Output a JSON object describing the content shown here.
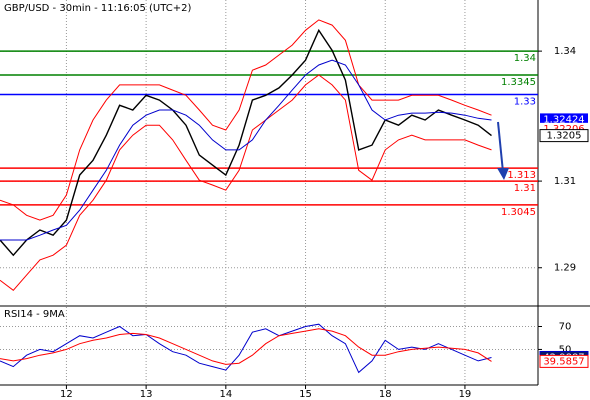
{
  "chart_data": [
    {
      "type": "line",
      "title": "GBP/USD - 30min - 11:16:05 (UTC+2)",
      "x": [
        0,
        4,
        8,
        12,
        16,
        20,
        24,
        28,
        32,
        36,
        40,
        44,
        48,
        52,
        56,
        60,
        64,
        68,
        72,
        76,
        80,
        84,
        88,
        92,
        96,
        100,
        104,
        108,
        112,
        116,
        120,
        124,
        128,
        132,
        136,
        140,
        144,
        148
      ],
      "xlim": [
        0,
        162
      ],
      "ylim": [
        1.2814,
        1.3518
      ],
      "yticks": [
        1.34,
        1.31,
        1.29
      ],
      "grid": true,
      "series": [
        {
          "color": "#000000",
          "values": [
            1.2964,
            1.2929,
            1.2964,
            1.2987,
            1.2975,
            1.301,
            1.3114,
            1.3148,
            1.3206,
            1.3275,
            1.3264,
            1.3298,
            1.3287,
            1.3264,
            1.3229,
            1.316,
            1.3137,
            1.3114,
            1.3183,
            1.3287,
            1.3298,
            1.3315,
            1.3345,
            1.3379,
            1.3448,
            1.3402,
            1.3333,
            1.3172,
            1.3183,
            1.3241,
            1.3229,
            1.3252,
            1.3241,
            1.3264,
            1.3252,
            1.3241,
            1.3229,
            1.3205
          ]
        },
        {
          "color": "#ff0000",
          "values": [
            1.3056,
            1.3045,
            1.3021,
            1.301,
            1.3021,
            1.3068,
            1.3172,
            1.3241,
            1.3287,
            1.3322,
            1.3322,
            1.3322,
            1.3322,
            1.331,
            1.3298,
            1.3264,
            1.3229,
            1.3218,
            1.3264,
            1.3356,
            1.3368,
            1.3391,
            1.3414,
            1.3448,
            1.3472,
            1.346,
            1.3425,
            1.3322,
            1.3287,
            1.3287,
            1.3287,
            1.3298,
            1.3298,
            1.3298,
            1.3287,
            1.3275,
            1.3264,
            1.3252
          ]
        },
        {
          "color": "#ff0000",
          "values": [
            1.2871,
            1.2848,
            1.2883,
            1.2918,
            1.2929,
            1.2952,
            1.3021,
            1.3056,
            1.3102,
            1.3172,
            1.3206,
            1.3229,
            1.3229,
            1.3195,
            1.3148,
            1.3102,
            1.3091,
            1.3079,
            1.3125,
            1.3218,
            1.3241,
            1.3264,
            1.3287,
            1.3322,
            1.3345,
            1.3322,
            1.3287,
            1.3125,
            1.3102,
            1.3172,
            1.3195,
            1.3206,
            1.3195,
            1.3195,
            1.3195,
            1.3195,
            1.3183,
            1.3172
          ]
        },
        {
          "color": "#0000cc",
          "values": [
            1.2964,
            1.2964,
            1.2964,
            1.2975,
            1.2987,
            1.2998,
            1.3033,
            1.3079,
            1.3125,
            1.3183,
            1.3229,
            1.3252,
            1.3264,
            1.3264,
            1.3252,
            1.3229,
            1.3195,
            1.3172,
            1.3172,
            1.3195,
            1.3241,
            1.3275,
            1.331,
            1.3345,
            1.3368,
            1.3379,
            1.3368,
            1.3322,
            1.3264,
            1.3241,
            1.3252,
            1.3257,
            1.3257,
            1.3259,
            1.3257,
            1.3252,
            1.3245,
            1.3241
          ]
        }
      ],
      "levels": [
        {
          "value": 1.34,
          "color": "#008000"
        },
        {
          "value": 1.3345,
          "color": "#008000"
        },
        {
          "value": 1.33,
          "color": "#0000ff"
        },
        {
          "value": 1.313,
          "color": "#ff0000"
        },
        {
          "value": 1.31,
          "color": "#ff0000"
        },
        {
          "value": 1.3045,
          "color": "#ff0000"
        }
      ],
      "price_labels": [
        {
          "value": 1.32424,
          "color": "#0000ff"
        },
        {
          "value": 1.32206,
          "color": "#ff0000"
        }
      ]
    },
    {
      "type": "line",
      "title": "RSI14 - 9MA",
      "x": [
        0,
        4,
        8,
        12,
        16,
        20,
        24,
        28,
        32,
        36,
        40,
        44,
        48,
        52,
        56,
        60,
        64,
        68,
        72,
        76,
        80,
        84,
        88,
        92,
        96,
        100,
        104,
        108,
        112,
        116,
        120,
        124,
        128,
        132,
        136,
        140,
        144,
        148
      ],
      "xlim": [
        0,
        162
      ],
      "xticks": [
        {
          "value": 20,
          "label": "12"
        },
        {
          "value": 44,
          "label": "13"
        },
        {
          "value": 68,
          "label": "14"
        },
        {
          "value": 92,
          "label": "15"
        },
        {
          "value": 116,
          "label": "18"
        },
        {
          "value": 140,
          "label": "19"
        }
      ],
      "ylim": [
        19,
        87
      ],
      "yticks": [
        70,
        50
      ],
      "grid": true,
      "series": [
        {
          "color": "#0000cc",
          "values": [
            40,
            35,
            45,
            50,
            48,
            55,
            62,
            60,
            65,
            70,
            62,
            63,
            55,
            48,
            45,
            38,
            35,
            32,
            45,
            65,
            68,
            62,
            66,
            70,
            72,
            62,
            55,
            30,
            40,
            58,
            50,
            52,
            50,
            55,
            50,
            45,
            40,
            42.9887
          ]
        },
        {
          "color": "#ff0000",
          "values": [
            42,
            40,
            42,
            45,
            47,
            50,
            55,
            58,
            60,
            63,
            64,
            63,
            60,
            55,
            50,
            45,
            40,
            37,
            38,
            45,
            55,
            62,
            64,
            66,
            68,
            66,
            62,
            52,
            45,
            45,
            48,
            50,
            51,
            52,
            51,
            50,
            47,
            39.5857
          ]
        }
      ]
    }
  ]
}
